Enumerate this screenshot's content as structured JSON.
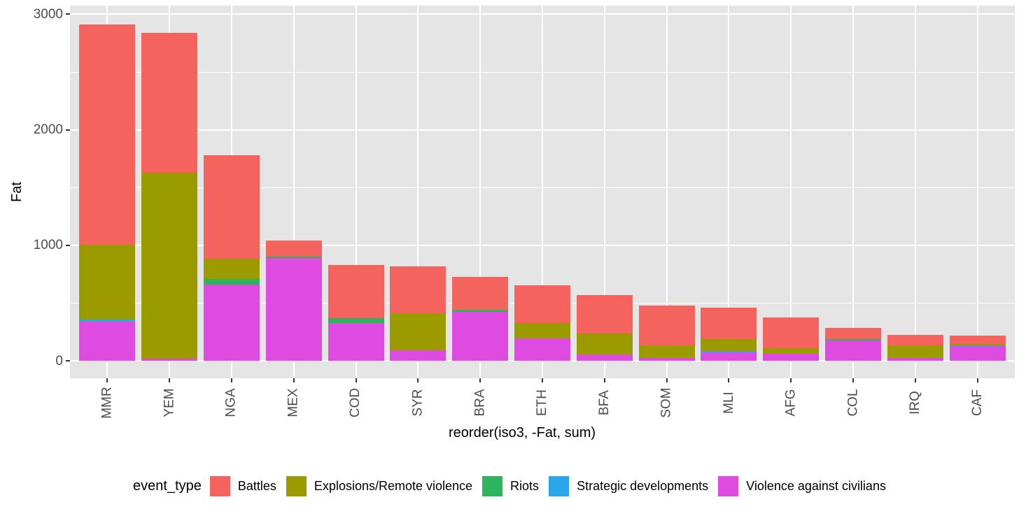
{
  "chart_data": {
    "type": "bar",
    "stacked": true,
    "title": "",
    "xlabel": "reorder(iso3, -Fat, sum)",
    "ylabel": "Fat",
    "categories": [
      "MMR",
      "YEM",
      "NGA",
      "MEX",
      "COD",
      "SYR",
      "BRA",
      "ETH",
      "BFA",
      "SOM",
      "MLI",
      "AFG",
      "COL",
      "IRQ",
      "CAF"
    ],
    "series": [
      {
        "name": "Battles",
        "color": "#F4635D",
        "values": [
          1905,
          1210,
          895,
          140,
          460,
          410,
          290,
          325,
          333,
          343,
          274,
          264,
          98,
          89,
          76
        ]
      },
      {
        "name": "Explosions/Remote violence",
        "color": "#9B9B00",
        "values": [
          645,
          1610,
          175,
          0,
          0,
          320,
          0,
          135,
          182,
          112,
          101,
          51,
          0,
          111,
          8
        ]
      },
      {
        "name": "Riots",
        "color": "#2CB45F",
        "values": [
          0,
          0,
          50,
          15,
          40,
          0,
          15,
          0,
          0,
          0,
          0,
          0,
          12,
          0,
          0
        ]
      },
      {
        "name": "Strategic developments",
        "color": "#2AA7EA",
        "values": [
          20,
          0,
          0,
          0,
          0,
          0,
          0,
          0,
          0,
          0,
          10,
          0,
          0,
          0,
          6
        ]
      },
      {
        "name": "Violence against civilians",
        "color": "#DF4BE0",
        "values": [
          340,
          20,
          660,
          890,
          330,
          90,
          425,
          195,
          55,
          25,
          75,
          60,
          175,
          25,
          130
        ]
      }
    ],
    "stack_order_bottom_to_top": [
      "Violence against civilians",
      "Strategic developments",
      "Riots",
      "Explosions/Remote violence",
      "Battles"
    ],
    "totals": [
      2910,
      2840,
      1780,
      1045,
      830,
      820,
      730,
      655,
      570,
      480,
      460,
      375,
      285,
      225,
      220
    ],
    "ylim": [
      0,
      3000
    ],
    "yticks": [
      0,
      1000,
      2000,
      3000
    ],
    "yminor": [
      500,
      1500,
      2500
    ],
    "grid": true,
    "legend_position": "bottom"
  },
  "legend": {
    "title": "event_type",
    "entries": [
      {
        "label": "Battles",
        "color": "#F4635D"
      },
      {
        "label": "Explosions/Remote violence",
        "color": "#9B9B00"
      },
      {
        "label": "Riots",
        "color": "#2CB45F"
      },
      {
        "label": "Strategic developments",
        "color": "#2AA7EA"
      },
      {
        "label": "Violence against civilians",
        "color": "#DF4BE0"
      }
    ]
  },
  "axes": {
    "x_title": "reorder(iso3, -Fat, sum)",
    "y_title": "Fat",
    "y_tick_labels": [
      "0",
      "1000",
      "2000",
      "3000"
    ]
  },
  "colors": {
    "panel_background": "#E5E5E5",
    "grid": "#FFFFFF",
    "tick_text": "#4D4D4D",
    "title_text": "#000000"
  }
}
